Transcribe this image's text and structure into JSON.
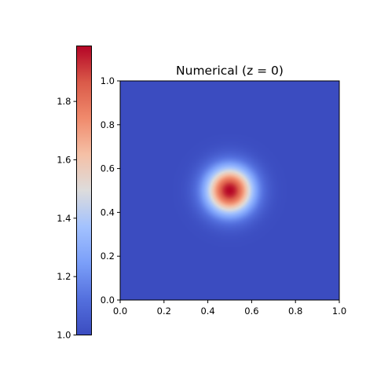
{
  "chart_data": {
    "type": "heatmap",
    "title": "Numerical (z = 0)",
    "xlabel": "",
    "ylabel": "",
    "xlim": [
      0.0,
      1.0
    ],
    "ylim": [
      0.0,
      1.0
    ],
    "x_ticks": [
      "0.0",
      "0.2",
      "0.4",
      "0.6",
      "0.8",
      "1.0"
    ],
    "y_ticks": [
      "0.0",
      "0.2",
      "0.4",
      "0.6",
      "0.8",
      "1.0"
    ],
    "grid": false,
    "colormap": "coolwarm",
    "colorbar": {
      "position": "left",
      "range": [
        1.0,
        1.99
      ],
      "ticks": [
        "1.0",
        "1.2",
        "1.4",
        "1.6",
        "1.8"
      ]
    },
    "field": {
      "description_free": true,
      "center": [
        0.5,
        0.5
      ],
      "background_value": 1.0,
      "peak_value": 1.99,
      "falloff_sigma": 0.075
    }
  }
}
